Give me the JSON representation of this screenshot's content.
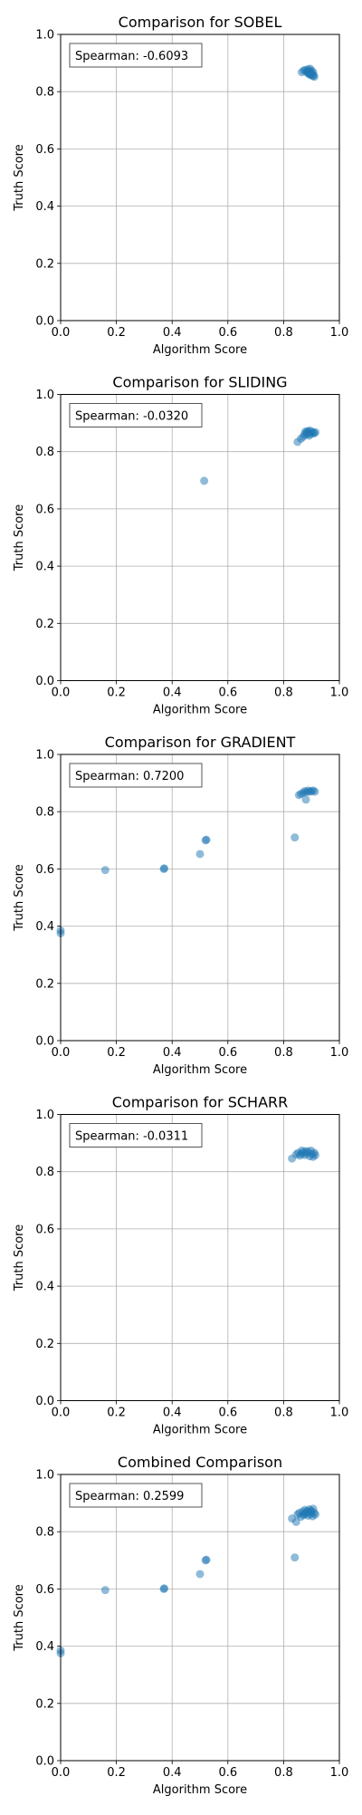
{
  "chart_data": [
    {
      "type": "scatter",
      "title": "Comparison for SOBEL",
      "xlabel": "Algorithm Score",
      "ylabel": "Truth Score",
      "xlim": [
        0,
        1
      ],
      "ylim": [
        0,
        1
      ],
      "xticks": [
        "0.0",
        "0.2",
        "0.4",
        "0.6",
        "0.8",
        "1.0"
      ],
      "yticks": [
        "0.0",
        "0.2",
        "0.4",
        "0.6",
        "0.8",
        "1.0"
      ],
      "grid": true,
      "annotation": "Spearman: -0.6093",
      "annotation_placement": "top-left",
      "point_color": "#1f77b4",
      "point_opacity": 0.5,
      "points": [
        {
          "x": 0.865,
          "y": 0.868
        },
        {
          "x": 0.872,
          "y": 0.874
        },
        {
          "x": 0.878,
          "y": 0.876
        },
        {
          "x": 0.882,
          "y": 0.871
        },
        {
          "x": 0.885,
          "y": 0.866
        },
        {
          "x": 0.888,
          "y": 0.878
        },
        {
          "x": 0.89,
          "y": 0.862
        },
        {
          "x": 0.892,
          "y": 0.87
        },
        {
          "x": 0.895,
          "y": 0.88
        },
        {
          "x": 0.896,
          "y": 0.858
        },
        {
          "x": 0.898,
          "y": 0.866
        },
        {
          "x": 0.9,
          "y": 0.874
        },
        {
          "x": 0.902,
          "y": 0.861
        },
        {
          "x": 0.904,
          "y": 0.855
        },
        {
          "x": 0.906,
          "y": 0.868
        },
        {
          "x": 0.908,
          "y": 0.857
        },
        {
          "x": 0.91,
          "y": 0.852
        },
        {
          "x": 0.888,
          "y": 0.87
        },
        {
          "x": 0.893,
          "y": 0.864
        },
        {
          "x": 0.899,
          "y": 0.86
        }
      ]
    },
    {
      "type": "scatter",
      "title": "Comparison for SLIDING",
      "xlabel": "Algorithm Score",
      "ylabel": "Truth Score",
      "xlim": [
        0,
        1
      ],
      "ylim": [
        0,
        1
      ],
      "xticks": [
        "0.0",
        "0.2",
        "0.4",
        "0.6",
        "0.8",
        "1.0"
      ],
      "yticks": [
        "0.0",
        "0.2",
        "0.4",
        "0.6",
        "0.8",
        "1.0"
      ],
      "grid": true,
      "annotation": "Spearman: -0.0320",
      "annotation_placement": "top-left",
      "point_color": "#1f77b4",
      "point_opacity": 0.5,
      "points": [
        {
          "x": 0.515,
          "y": 0.698
        },
        {
          "x": 0.85,
          "y": 0.834
        },
        {
          "x": 0.862,
          "y": 0.845
        },
        {
          "x": 0.87,
          "y": 0.852
        },
        {
          "x": 0.875,
          "y": 0.86
        },
        {
          "x": 0.878,
          "y": 0.87
        },
        {
          "x": 0.882,
          "y": 0.866
        },
        {
          "x": 0.886,
          "y": 0.872
        },
        {
          "x": 0.89,
          "y": 0.868
        },
        {
          "x": 0.894,
          "y": 0.874
        },
        {
          "x": 0.898,
          "y": 0.862
        },
        {
          "x": 0.902,
          "y": 0.87
        },
        {
          "x": 0.906,
          "y": 0.866
        },
        {
          "x": 0.91,
          "y": 0.864
        },
        {
          "x": 0.914,
          "y": 0.868
        },
        {
          "x": 0.884,
          "y": 0.86
        },
        {
          "x": 0.892,
          "y": 0.856
        }
      ]
    },
    {
      "type": "scatter",
      "title": "Comparison for GRADIENT",
      "xlabel": "Algorithm Score",
      "ylabel": "Truth Score",
      "xlim": [
        0,
        1
      ],
      "ylim": [
        0,
        1
      ],
      "xticks": [
        "0.0",
        "0.2",
        "0.4",
        "0.6",
        "0.8",
        "1.0"
      ],
      "yticks": [
        "0.0",
        "0.2",
        "0.4",
        "0.6",
        "0.8",
        "1.0"
      ],
      "grid": true,
      "annotation": "Spearman: 0.7200",
      "annotation_placement": "top-left",
      "point_color": "#1f77b4",
      "point_opacity": 0.5,
      "points": [
        {
          "x": 0.0,
          "y": 0.385
        },
        {
          "x": 0.0,
          "y": 0.375
        },
        {
          "x": 0.16,
          "y": 0.596
        },
        {
          "x": 0.37,
          "y": 0.6
        },
        {
          "x": 0.372,
          "y": 0.602
        },
        {
          "x": 0.5,
          "y": 0.652
        },
        {
          "x": 0.52,
          "y": 0.7
        },
        {
          "x": 0.523,
          "y": 0.702
        },
        {
          "x": 0.84,
          "y": 0.71
        },
        {
          "x": 0.88,
          "y": 0.842
        },
        {
          "x": 0.855,
          "y": 0.858
        },
        {
          "x": 0.862,
          "y": 0.862
        },
        {
          "x": 0.87,
          "y": 0.866
        },
        {
          "x": 0.876,
          "y": 0.872
        },
        {
          "x": 0.882,
          "y": 0.868
        },
        {
          "x": 0.888,
          "y": 0.874
        },
        {
          "x": 0.894,
          "y": 0.87
        },
        {
          "x": 0.9,
          "y": 0.872
        },
        {
          "x": 0.906,
          "y": 0.874
        },
        {
          "x": 0.912,
          "y": 0.87
        }
      ]
    },
    {
      "type": "scatter",
      "title": "Comparison for SCHARR",
      "xlabel": "Algorithm Score",
      "ylabel": "Truth Score",
      "xlim": [
        0,
        1
      ],
      "ylim": [
        0,
        1
      ],
      "xticks": [
        "0.0",
        "0.2",
        "0.4",
        "0.6",
        "0.8",
        "1.0"
      ],
      "yticks": [
        "0.0",
        "0.2",
        "0.4",
        "0.6",
        "0.8",
        "1.0"
      ],
      "grid": true,
      "annotation": "Spearman: -0.0311",
      "annotation_placement": "top-left",
      "point_color": "#1f77b4",
      "point_opacity": 0.5,
      "points": [
        {
          "x": 0.83,
          "y": 0.846
        },
        {
          "x": 0.845,
          "y": 0.86
        },
        {
          "x": 0.852,
          "y": 0.866
        },
        {
          "x": 0.858,
          "y": 0.856
        },
        {
          "x": 0.864,
          "y": 0.862
        },
        {
          "x": 0.87,
          "y": 0.868
        },
        {
          "x": 0.876,
          "y": 0.858
        },
        {
          "x": 0.882,
          "y": 0.864
        },
        {
          "x": 0.888,
          "y": 0.87
        },
        {
          "x": 0.894,
          "y": 0.854
        },
        {
          "x": 0.898,
          "y": 0.874
        },
        {
          "x": 0.902,
          "y": 0.862
        },
        {
          "x": 0.906,
          "y": 0.852
        },
        {
          "x": 0.91,
          "y": 0.866
        },
        {
          "x": 0.914,
          "y": 0.858
        },
        {
          "x": 0.88,
          "y": 0.872
        },
        {
          "x": 0.866,
          "y": 0.874
        }
      ]
    },
    {
      "type": "scatter",
      "title": "Combined Comparison",
      "xlabel": "Algorithm Score",
      "ylabel": "Truth Score",
      "xlim": [
        0,
        1
      ],
      "ylim": [
        0,
        1
      ],
      "xticks": [
        "0.0",
        "0.2",
        "0.4",
        "0.6",
        "0.8",
        "1.0"
      ],
      "yticks": [
        "0.0",
        "0.2",
        "0.4",
        "0.6",
        "0.8",
        "1.0"
      ],
      "grid": true,
      "annotation": "Spearman: 0.2599",
      "annotation_placement": "top-left",
      "point_color": "#1f77b4",
      "point_opacity": 0.5,
      "points": [
        {
          "x": 0.0,
          "y": 0.385
        },
        {
          "x": 0.0,
          "y": 0.375
        },
        {
          "x": 0.16,
          "y": 0.596
        },
        {
          "x": 0.37,
          "y": 0.6
        },
        {
          "x": 0.372,
          "y": 0.602
        },
        {
          "x": 0.5,
          "y": 0.652
        },
        {
          "x": 0.52,
          "y": 0.7
        },
        {
          "x": 0.523,
          "y": 0.702
        },
        {
          "x": 0.84,
          "y": 0.71
        },
        {
          "x": 0.83,
          "y": 0.846
        },
        {
          "x": 0.845,
          "y": 0.834
        },
        {
          "x": 0.85,
          "y": 0.86
        },
        {
          "x": 0.856,
          "y": 0.866
        },
        {
          "x": 0.862,
          "y": 0.852
        },
        {
          "x": 0.868,
          "y": 0.87
        },
        {
          "x": 0.872,
          "y": 0.858
        },
        {
          "x": 0.876,
          "y": 0.876
        },
        {
          "x": 0.88,
          "y": 0.864
        },
        {
          "x": 0.884,
          "y": 0.872
        },
        {
          "x": 0.888,
          "y": 0.856
        },
        {
          "x": 0.892,
          "y": 0.878
        },
        {
          "x": 0.896,
          "y": 0.862
        },
        {
          "x": 0.9,
          "y": 0.87
        },
        {
          "x": 0.904,
          "y": 0.854
        },
        {
          "x": 0.906,
          "y": 0.88
        },
        {
          "x": 0.91,
          "y": 0.866
        },
        {
          "x": 0.914,
          "y": 0.86
        },
        {
          "x": 0.898,
          "y": 0.874
        },
        {
          "x": 0.886,
          "y": 0.868
        },
        {
          "x": 0.874,
          "y": 0.862
        }
      ]
    }
  ]
}
